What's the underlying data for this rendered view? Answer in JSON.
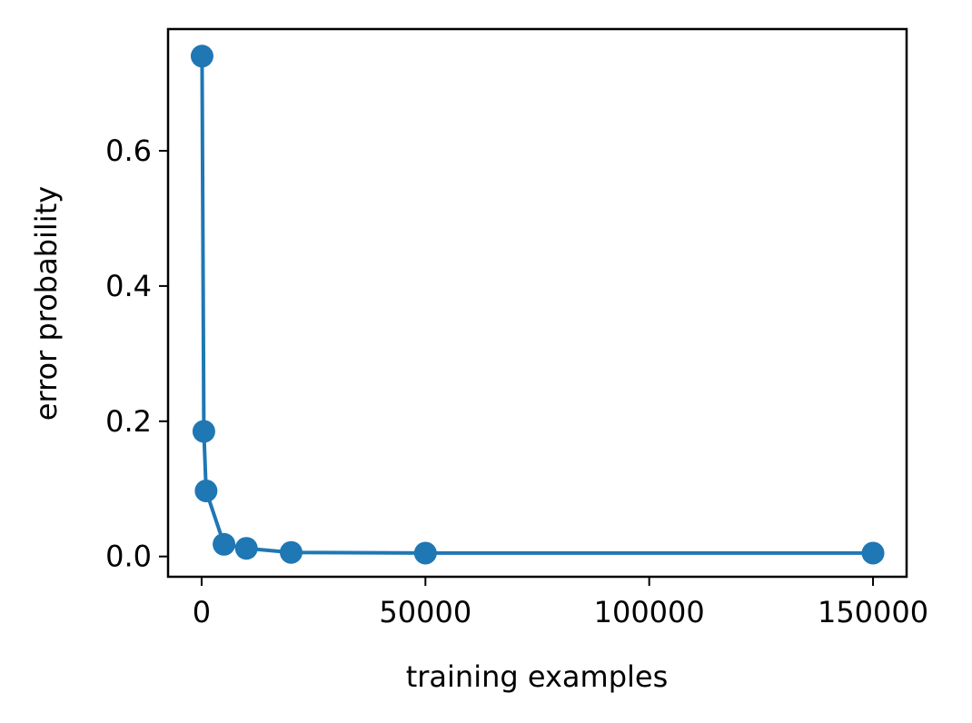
{
  "chart_data": {
    "type": "line",
    "title": "",
    "xlabel": "training examples",
    "ylabel": "error probability",
    "xlim": [
      -7500,
      157500
    ],
    "ylim": [
      -0.03,
      0.78
    ],
    "xticks": [
      0,
      50000,
      100000,
      150000
    ],
    "xtick_labels": [
      "0",
      "50000",
      "100000",
      "150000"
    ],
    "yticks": [
      0.0,
      0.2,
      0.4,
      0.6
    ],
    "ytick_labels": [
      "0.0",
      "0.2",
      "0.4",
      "0.6"
    ],
    "grid": false,
    "legend": "none",
    "series": [
      {
        "x": [
          100,
          500,
          1000,
          5000,
          10000,
          20000,
          50000,
          150000
        ],
        "y": [
          0.74,
          0.185,
          0.097,
          0.018,
          0.012,
          0.006,
          0.005,
          0.005
        ],
        "color": "#1f77b4",
        "marker": "circle"
      }
    ]
  }
}
